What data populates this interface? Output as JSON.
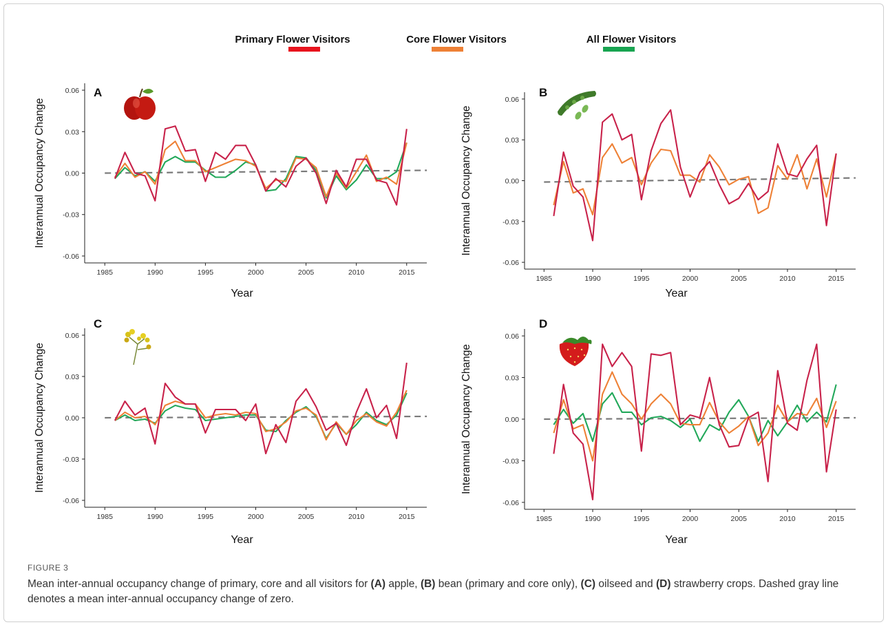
{
  "legend": [
    {
      "name": "Primary Flower Visitors",
      "color": "#e8141e"
    },
    {
      "name": "Core Flower Visitors",
      "color": "#ee8136"
    },
    {
      "name": "All Flower Visitors",
      "color": "#18a451"
    }
  ],
  "colors": {
    "primary_line": "#c8224a",
    "core_line": "#ee8136",
    "all_line": "#22a85a",
    "zero_line": "#7a7a7a"
  },
  "caption": {
    "label": "FIGURE 3",
    "text_parts": [
      {
        "t": "Mean inter-annual occupancy change of primary, core and all visitors for ",
        "b": false
      },
      {
        "t": "(A)",
        "b": true
      },
      {
        "t": " apple, ",
        "b": false
      },
      {
        "t": "(B)",
        "b": true
      },
      {
        "t": " bean (primary and core only), ",
        "b": false
      },
      {
        "t": "(C)",
        "b": true
      },
      {
        "t": " oilseed and ",
        "b": false
      },
      {
        "t": "(D)",
        "b": true
      },
      {
        "t": " strawberry crops. Dashed gray line denotes a mean inter-annual occupancy change of zero.",
        "b": false
      }
    ]
  },
  "chart_data": [
    {
      "type": "line",
      "panel": "A",
      "icon": "apple-icon",
      "xlabel": "Year",
      "ylabel": "Interannual Occupancy Change",
      "xlim": [
        1983,
        2017
      ],
      "ylim": [
        -0.065,
        0.065
      ],
      "xticks": [
        1985,
        1990,
        1995,
        2000,
        2005,
        2010,
        2015
      ],
      "yticks": [
        -0.06,
        -0.03,
        0.0,
        0.03,
        0.06
      ],
      "ytick_labels": [
        "-0.06",
        "-0.03",
        "0.00",
        "0.03",
        "0.06"
      ],
      "zero_line": [
        [
          1985,
          0.0
        ],
        [
          2017,
          0.002
        ]
      ],
      "x": [
        1986,
        1987,
        1988,
        1989,
        1990,
        1991,
        1992,
        1993,
        1994,
        1995,
        1996,
        1997,
        1998,
        1999,
        2000,
        2001,
        2002,
        2003,
        2004,
        2005,
        2006,
        2007,
        2008,
        2009,
        2010,
        2011,
        2012,
        2013,
        2014,
        2015
      ],
      "series": [
        {
          "key": "all",
          "values": [
            -0.004,
            0.004,
            -0.002,
            0.001,
            -0.006,
            0.008,
            0.012,
            0.008,
            0.008,
            0.002,
            -0.003,
            -0.003,
            0.002,
            0.008,
            0.006,
            -0.013,
            -0.012,
            -0.004,
            0.012,
            0.011,
            0.002,
            -0.018,
            -0.002,
            -0.012,
            -0.005,
            0.006,
            -0.004,
            -0.004,
            0.001,
            0.022
          ]
        },
        {
          "key": "core",
          "values": [
            -0.003,
            0.007,
            -0.003,
            0.001,
            -0.008,
            0.017,
            0.023,
            0.009,
            0.009,
            0.001,
            0.004,
            0.007,
            0.01,
            0.009,
            0.005,
            -0.011,
            -0.005,
            -0.006,
            0.011,
            0.01,
            0.004,
            -0.017,
            0.0,
            -0.011,
            0.001,
            0.013,
            -0.006,
            -0.003,
            -0.008,
            0.022
          ]
        },
        {
          "key": "primary",
          "values": [
            -0.004,
            0.015,
            0.0,
            -0.002,
            -0.02,
            0.032,
            0.034,
            0.016,
            0.017,
            -0.006,
            0.015,
            0.01,
            0.02,
            0.02,
            0.006,
            -0.013,
            -0.004,
            -0.01,
            0.005,
            0.011,
            0.0,
            -0.022,
            0.002,
            -0.01,
            0.01,
            0.01,
            -0.005,
            -0.007,
            -0.023,
            0.032
          ]
        }
      ]
    },
    {
      "type": "line",
      "panel": "B",
      "icon": "bean-pod-icon",
      "xlabel": "Year",
      "ylabel": "Interannual Occupancy Change",
      "xlim": [
        1983,
        2017
      ],
      "ylim": [
        -0.065,
        0.065
      ],
      "xticks": [
        1985,
        1990,
        1995,
        2000,
        2005,
        2010,
        2015
      ],
      "yticks": [
        -0.06,
        -0.03,
        0.0,
        0.03,
        0.06
      ],
      "ytick_labels": [
        "-0.06",
        "-0.03",
        "0.00",
        "0.03",
        "0.06"
      ],
      "zero_line": [
        [
          1985,
          -0.001
        ],
        [
          2017,
          0.002
        ]
      ],
      "x": [
        1986,
        1987,
        1988,
        1989,
        1990,
        1991,
        1992,
        1993,
        1994,
        1995,
        1996,
        1997,
        1998,
        1999,
        2000,
        2001,
        2002,
        2003,
        2004,
        2005,
        2006,
        2007,
        2008,
        2009,
        2010,
        2011,
        2012,
        2013,
        2014,
        2015
      ],
      "series": [
        {
          "key": "core",
          "values": [
            -0.018,
            0.014,
            -0.009,
            -0.006,
            -0.025,
            0.017,
            0.027,
            0.013,
            0.017,
            -0.003,
            0.013,
            0.023,
            0.022,
            0.004,
            0.004,
            -0.001,
            0.019,
            0.01,
            -0.003,
            0.001,
            0.003,
            -0.024,
            -0.02,
            0.011,
            0.001,
            0.019,
            -0.006,
            0.016,
            -0.012,
            0.02
          ]
        },
        {
          "key": "primary",
          "values": [
            -0.026,
            0.021,
            -0.004,
            -0.012,
            -0.044,
            0.043,
            0.049,
            0.03,
            0.034,
            -0.014,
            0.022,
            0.042,
            0.052,
            0.01,
            -0.012,
            0.006,
            0.014,
            -0.003,
            -0.017,
            -0.013,
            -0.002,
            -0.014,
            -0.008,
            0.027,
            0.005,
            0.003,
            0.016,
            0.026,
            -0.033,
            0.02
          ]
        }
      ]
    },
    {
      "type": "line",
      "panel": "C",
      "icon": "oilseed-flower-icon",
      "xlabel": "Year",
      "ylabel": "Interannual Occupancy Change",
      "xlim": [
        1983,
        2017
      ],
      "ylim": [
        -0.065,
        0.065
      ],
      "xticks": [
        1985,
        1990,
        1995,
        2000,
        2005,
        2010,
        2015
      ],
      "yticks": [
        -0.06,
        -0.03,
        0.0,
        0.03,
        0.06
      ],
      "ytick_labels": [
        "-0.06",
        "-0.03",
        "0.00",
        "0.03",
        "0.06"
      ],
      "zero_line": [
        [
          1985,
          0.0
        ],
        [
          2017,
          0.001
        ]
      ],
      "x": [
        1986,
        1987,
        1988,
        1989,
        1990,
        1991,
        1992,
        1993,
        1994,
        1995,
        1996,
        1997,
        1998,
        1999,
        2000,
        2001,
        2002,
        2003,
        2004,
        2005,
        2006,
        2007,
        2008,
        2009,
        2010,
        2011,
        2012,
        2013,
        2014,
        2015
      ],
      "series": [
        {
          "key": "all",
          "values": [
            -0.002,
            0.002,
            -0.002,
            -0.001,
            -0.004,
            0.005,
            0.009,
            0.007,
            0.006,
            -0.002,
            -0.001,
            0.0,
            0.001,
            0.002,
            0.002,
            -0.009,
            -0.01,
            -0.002,
            0.004,
            0.008,
            0.001,
            -0.015,
            -0.004,
            -0.012,
            -0.005,
            0.004,
            -0.002,
            -0.005,
            0.002,
            0.018
          ]
        },
        {
          "key": "core",
          "values": [
            -0.002,
            0.004,
            0.0,
            0.001,
            -0.005,
            0.009,
            0.012,
            0.01,
            0.01,
            0.0,
            0.002,
            0.003,
            0.002,
            0.004,
            0.003,
            -0.01,
            -0.008,
            -0.003,
            0.005,
            0.007,
            0.002,
            -0.016,
            -0.003,
            -0.012,
            -0.002,
            0.003,
            -0.003,
            -0.006,
            0.004,
            0.02
          ]
        },
        {
          "key": "primary",
          "values": [
            -0.002,
            0.012,
            0.002,
            0.007,
            -0.019,
            0.025,
            0.015,
            0.01,
            0.01,
            -0.011,
            0.006,
            0.006,
            0.006,
            -0.002,
            0.01,
            -0.026,
            -0.005,
            -0.018,
            0.012,
            0.021,
            0.008,
            -0.009,
            -0.004,
            -0.02,
            0.004,
            0.021,
            0.0,
            0.009,
            -0.015,
            0.04
          ]
        }
      ]
    },
    {
      "type": "line",
      "panel": "D",
      "icon": "strawberry-icon",
      "xlabel": "Year",
      "ylabel": "Interannual Occupancy Change",
      "xlim": [
        1983,
        2017
      ],
      "ylim": [
        -0.065,
        0.065
      ],
      "xticks": [
        1985,
        1990,
        1995,
        2000,
        2005,
        2010,
        2015
      ],
      "yticks": [
        -0.06,
        -0.03,
        0.0,
        0.03,
        0.06
      ],
      "ytick_labels": [
        "-0.06",
        "-0.03",
        "0.00",
        "0.03",
        "0.06"
      ],
      "zero_line": [
        [
          1985,
          0.0
        ],
        [
          2017,
          0.001
        ]
      ],
      "x": [
        1986,
        1987,
        1988,
        1989,
        1990,
        1991,
        1992,
        1993,
        1994,
        1995,
        1996,
        1997,
        1998,
        1999,
        2000,
        2001,
        2002,
        2003,
        2004,
        2005,
        2006,
        2007,
        2008,
        2009,
        2010,
        2011,
        2012,
        2013,
        2014,
        2015
      ],
      "series": [
        {
          "key": "all",
          "values": [
            -0.004,
            0.007,
            -0.003,
            0.004,
            -0.016,
            0.011,
            0.019,
            0.005,
            0.005,
            -0.004,
            0.001,
            0.002,
            -0.001,
            -0.006,
            0.0,
            -0.016,
            -0.004,
            -0.008,
            0.005,
            0.014,
            0.002,
            -0.016,
            -0.001,
            -0.012,
            -0.002,
            0.01,
            -0.002,
            0.005,
            -0.002,
            0.025
          ]
        },
        {
          "key": "core",
          "values": [
            -0.01,
            0.014,
            -0.007,
            -0.004,
            -0.03,
            0.018,
            0.034,
            0.018,
            0.011,
            0.0,
            0.011,
            0.018,
            0.011,
            -0.003,
            -0.004,
            -0.004,
            0.012,
            -0.002,
            -0.01,
            -0.005,
            0.002,
            -0.019,
            -0.01,
            0.01,
            -0.002,
            0.004,
            0.003,
            0.015,
            -0.006,
            0.013
          ]
        },
        {
          "key": "primary",
          "values": [
            -0.025,
            0.025,
            -0.01,
            -0.018,
            -0.058,
            0.054,
            0.038,
            0.048,
            0.038,
            -0.023,
            0.047,
            0.046,
            0.048,
            -0.004,
            0.003,
            0.001,
            0.03,
            -0.004,
            -0.02,
            -0.019,
            0.001,
            0.005,
            -0.045,
            0.035,
            -0.003,
            -0.008,
            0.028,
            0.054,
            -0.038,
            0.007
          ]
        }
      ]
    }
  ]
}
